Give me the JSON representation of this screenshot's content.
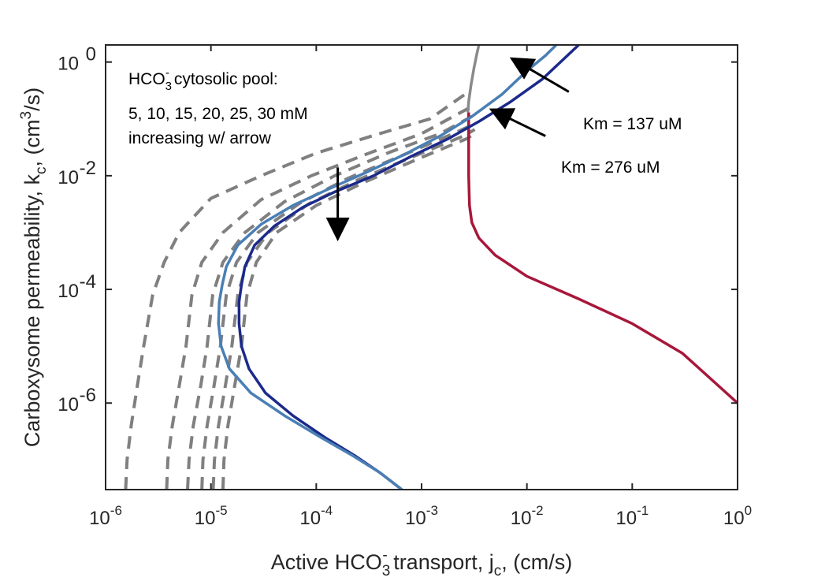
{
  "chart_data": {
    "type": "line",
    "x_scale": "log",
    "y_scale": "log",
    "xlim": [
      1e-06,
      1
    ],
    "ylim": [
      3e-08,
      2
    ],
    "grid": false,
    "legend": "none",
    "xlabel": {
      "pre": "Active HCO",
      "sub": "3",
      "sup": "-",
      "post": " transport, j",
      "sub2": "c",
      "post2": ", (cm/s)"
    },
    "ylabel": {
      "pre": "Carboxysome permeability, k",
      "sub": "c",
      "mid": ", (cm",
      "sup": "3",
      "post": "/s)"
    },
    "x_ticks": [
      {
        "value": 1e-06,
        "base": "10",
        "exp": "-6"
      },
      {
        "value": 1e-05,
        "base": "10",
        "exp": "-5"
      },
      {
        "value": 0.0001,
        "base": "10",
        "exp": "-4"
      },
      {
        "value": 0.001,
        "base": "10",
        "exp": "-3"
      },
      {
        "value": 0.01,
        "base": "10",
        "exp": "-2"
      },
      {
        "value": 0.1,
        "base": "10",
        "exp": "-1"
      },
      {
        "value": 1,
        "base": "10",
        "exp": "0"
      }
    ],
    "y_ticks": [
      {
        "value": 1e-06,
        "base": "10",
        "exp": "-6"
      },
      {
        "value": 0.0001,
        "base": "10",
        "exp": "-4"
      },
      {
        "value": 0.01,
        "base": "10",
        "exp": "-2"
      },
      {
        "value": 1,
        "base": "10",
        "exp": "0"
      }
    ],
    "colors": {
      "dashed": "#808080",
      "km137": "#4a7fb5",
      "km276": "#1b2a8a",
      "red": "#a8173a",
      "gray_solid": "#8a8a8a"
    },
    "series": [
      {
        "group": "dashed",
        "points": [
          [
            1.55e-06,
            3e-08
          ],
          [
            1.6e-06,
            1e-07
          ],
          [
            1.75e-06,
            4e-07
          ],
          [
            2e-06,
            2e-06
          ],
          [
            2.3e-06,
            1e-05
          ],
          [
            2.8e-06,
            8e-05
          ],
          [
            3.6e-06,
            0.0003
          ],
          [
            5e-06,
            0.001
          ],
          [
            1e-05,
            0.004
          ],
          [
            3e-05,
            0.01
          ],
          [
            0.0001,
            0.025
          ],
          [
            0.0004,
            0.055
          ],
          [
            0.0012,
            0.1
          ],
          [
            0.0028,
            0.3
          ]
        ]
      },
      {
        "group": "dashed",
        "points": [
          [
            3.8e-06,
            3e-08
          ],
          [
            3.9e-06,
            1e-07
          ],
          [
            4.3e-06,
            4e-07
          ],
          [
            5e-06,
            2e-06
          ],
          [
            5.8e-06,
            1e-05
          ],
          [
            6.6e-06,
            8e-05
          ],
          [
            8.2e-06,
            0.0003
          ],
          [
            1.3e-05,
            0.001
          ],
          [
            3e-05,
            0.0038
          ],
          [
            9e-05,
            0.01
          ],
          [
            0.0003,
            0.024
          ],
          [
            0.001,
            0.055
          ],
          [
            0.0029,
            0.16
          ]
        ]
      },
      {
        "group": "dashed",
        "points": [
          [
            6e-06,
            3e-08
          ],
          [
            6.2e-06,
            1e-07
          ],
          [
            6.8e-06,
            4e-07
          ],
          [
            8e-06,
            2e-06
          ],
          [
            9.2e-06,
            1e-05
          ],
          [
            1.04e-05,
            8e-05
          ],
          [
            1.3e-05,
            0.0003
          ],
          [
            2.1e-05,
            0.001
          ],
          [
            5e-05,
            0.0035
          ],
          [
            0.00015,
            0.01
          ],
          [
            0.0005,
            0.026
          ],
          [
            0.0015,
            0.055
          ],
          [
            0.003,
            0.11
          ]
        ]
      },
      {
        "group": "dashed",
        "points": [
          [
            8.2e-06,
            3e-08
          ],
          [
            8.4e-06,
            1e-07
          ],
          [
            9.2e-06,
            4e-07
          ],
          [
            1.07e-05,
            2e-06
          ],
          [
            1.23e-05,
            1e-05
          ],
          [
            1.4e-05,
            8e-05
          ],
          [
            1.75e-05,
            0.0003
          ],
          [
            2.8e-05,
            0.001
          ],
          [
            7e-05,
            0.0033
          ],
          [
            0.0002,
            0.009
          ],
          [
            0.0007,
            0.024
          ],
          [
            0.002,
            0.055
          ],
          [
            0.0031,
            0.08
          ]
        ]
      },
      {
        "group": "dashed",
        "points": [
          [
            1.05e-05,
            3e-08
          ],
          [
            1.08e-05,
            1e-07
          ],
          [
            1.18e-05,
            4e-07
          ],
          [
            1.37e-05,
            2e-06
          ],
          [
            1.58e-05,
            1e-05
          ],
          [
            1.8e-05,
            8e-05
          ],
          [
            2.2e-05,
            0.0003
          ],
          [
            3.5e-05,
            0.001
          ],
          [
            8.5e-05,
            0.0032
          ],
          [
            0.00025,
            0.0085
          ],
          [
            0.0009,
            0.023
          ],
          [
            0.0025,
            0.05
          ],
          [
            0.0032,
            0.065
          ]
        ]
      },
      {
        "group": "dashed",
        "points": [
          [
            1.3e-05,
            3e-08
          ],
          [
            1.33e-05,
            1e-07
          ],
          [
            1.45e-05,
            4e-07
          ],
          [
            1.68e-05,
            2e-06
          ],
          [
            1.95e-05,
            1e-05
          ],
          [
            2.2e-05,
            8e-05
          ],
          [
            2.7e-05,
            0.0003
          ],
          [
            4.2e-05,
            0.001
          ],
          [
            0.0001,
            0.003
          ],
          [
            0.0003,
            0.008
          ],
          [
            0.001,
            0.021
          ],
          [
            0.0027,
            0.045
          ],
          [
            0.0033,
            0.058
          ]
        ]
      },
      {
        "group": "km276",
        "points": [
          [
            0.00065,
            3e-08
          ],
          [
            0.0004,
            6e-08
          ],
          [
            0.00023,
            1.2e-07
          ],
          [
            0.00012,
            2.5e-07
          ],
          [
            6e-05,
            6e-07
          ],
          [
            3.3e-05,
            1.5e-06
          ],
          [
            2.3e-05,
            4e-06
          ],
          [
            1.95e-05,
            1e-05
          ],
          [
            1.85e-05,
            2.5e-05
          ],
          [
            1.85e-05,
            6e-05
          ],
          [
            1.95e-05,
            0.00012
          ],
          [
            2.1e-05,
            0.00025
          ],
          [
            2.6e-05,
            0.0006
          ],
          [
            4e-05,
            0.0013
          ],
          [
            7.5e-05,
            0.0028
          ],
          [
            0.00015,
            0.0052
          ],
          [
            0.00035,
            0.01
          ],
          [
            0.0008,
            0.022
          ],
          [
            0.0018,
            0.045
          ],
          [
            0.0035,
            0.09
          ],
          [
            0.007,
            0.2
          ],
          [
            0.014,
            0.5
          ],
          [
            0.022,
            1.1
          ],
          [
            0.031,
            2
          ]
        ]
      },
      {
        "group": "km137",
        "points": [
          [
            0.00065,
            3e-08
          ],
          [
            0.0004,
            6e-08
          ],
          [
            0.00022,
            1.2e-07
          ],
          [
            0.00011,
            2.5e-07
          ],
          [
            5e-05,
            6e-07
          ],
          [
            2.4e-05,
            1.5e-06
          ],
          [
            1.5e-05,
            4e-06
          ],
          [
            1.25e-05,
            1e-05
          ],
          [
            1.18e-05,
            2.5e-05
          ],
          [
            1.2e-05,
            6e-05
          ],
          [
            1.28e-05,
            0.00012
          ],
          [
            1.4e-05,
            0.00025
          ],
          [
            1.8e-05,
            0.0006
          ],
          [
            3e-05,
            0.0014
          ],
          [
            6e-05,
            0.003
          ],
          [
            0.00013,
            0.0058
          ],
          [
            0.0003,
            0.0115
          ],
          [
            0.0007,
            0.024
          ],
          [
            0.0015,
            0.05
          ],
          [
            0.003,
            0.11
          ],
          [
            0.0058,
            0.27
          ],
          [
            0.01,
            0.7
          ],
          [
            0.015,
            1.3
          ],
          [
            0.019,
            2
          ]
        ]
      },
      {
        "group": "red",
        "points": [
          [
            0.0028,
            0.13
          ],
          [
            0.0028,
            0.05
          ],
          [
            0.0028,
            0.01
          ],
          [
            0.00285,
            0.003
          ],
          [
            0.003,
            0.0015
          ],
          [
            0.0035,
            0.0008
          ],
          [
            0.005,
            0.0004
          ],
          [
            0.01,
            0.00017
          ],
          [
            0.03,
            7e-05
          ],
          [
            0.1,
            2.5e-05
          ],
          [
            0.3,
            7.5e-06
          ],
          [
            1,
            1e-06
          ]
        ]
      },
      {
        "group": "gray_solid",
        "points": [
          [
            0.00275,
            0.13
          ],
          [
            0.0028,
            0.2
          ],
          [
            0.00295,
            0.4
          ],
          [
            0.00315,
            0.8
          ],
          [
            0.00335,
            1.4
          ],
          [
            0.0035,
            2
          ]
        ]
      }
    ],
    "arrows": [
      {
        "from": [
          0.00016,
          0.014
        ],
        "to": [
          0.00016,
          0.00085
        ]
      },
      {
        "from": [
          0.025,
          0.3
        ],
        "to": [
          0.0075,
          1.1
        ]
      },
      {
        "from": [
          0.015,
          0.05
        ],
        "to": [
          0.0048,
          0.14
        ]
      }
    ],
    "annotations": {
      "pool_title": {
        "pre": "HCO",
        "sub": "3",
        "sup": "-",
        "post": " cytosolic pool:"
      },
      "pool_values": "5, 10, 15, 20, 25, 30 mM",
      "pool_note": "increasing w/ arrow",
      "km137": "Km = 137 uM",
      "km276": "Km = 276 uM"
    }
  }
}
